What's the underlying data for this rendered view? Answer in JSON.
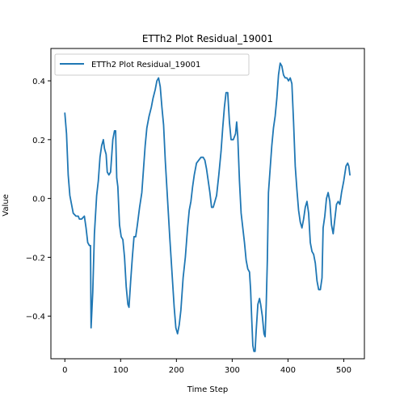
{
  "chart_data": {
    "type": "line",
    "title": "ETTh2 Plot Residual_19001",
    "xlabel": "Time Step",
    "ylabel": "Value",
    "xlim": [
      -25,
      537
    ],
    "ylim": [
      -0.545,
      0.51
    ],
    "xticks": [
      0,
      100,
      200,
      300,
      400,
      500
    ],
    "yticks": [
      -0.4,
      -0.2,
      0.0,
      0.2,
      0.4
    ],
    "ytick_labels": [
      "−0.4",
      "−0.2",
      "0.0",
      "0.2",
      "0.4"
    ],
    "grid": false,
    "legend_position": "top-left",
    "series": [
      {
        "name": "ETTh2 Plot Residual_19001",
        "color": "#1f77b4",
        "points": [
          [
            0,
            0.29
          ],
          [
            3,
            0.22
          ],
          [
            6,
            0.08
          ],
          [
            9,
            0.01
          ],
          [
            12,
            -0.02
          ],
          [
            15,
            -0.05
          ],
          [
            20,
            -0.06
          ],
          [
            24,
            -0.06
          ],
          [
            26,
            -0.07
          ],
          [
            30,
            -0.07
          ],
          [
            35,
            -0.06
          ],
          [
            38,
            -0.1
          ],
          [
            41,
            -0.15
          ],
          [
            44,
            -0.16
          ],
          [
            46,
            -0.16
          ],
          [
            47,
            -0.44
          ],
          [
            50,
            -0.32
          ],
          [
            53,
            -0.12
          ],
          [
            57,
            0.01
          ],
          [
            60,
            0.06
          ],
          [
            63,
            0.14
          ],
          [
            66,
            0.18
          ],
          [
            69,
            0.2
          ],
          [
            71,
            0.17
          ],
          [
            74,
            0.15
          ],
          [
            76,
            0.09
          ],
          [
            79,
            0.08
          ],
          [
            82,
            0.09
          ],
          [
            86,
            0.2
          ],
          [
            89,
            0.23
          ],
          [
            91,
            0.23
          ],
          [
            93,
            0.07
          ],
          [
            95,
            0.04
          ],
          [
            98,
            -0.09
          ],
          [
            101,
            -0.13
          ],
          [
            104,
            -0.14
          ],
          [
            107,
            -0.2
          ],
          [
            110,
            -0.3
          ],
          [
            113,
            -0.36
          ],
          [
            115,
            -0.37
          ],
          [
            118,
            -0.28
          ],
          [
            121,
            -0.2
          ],
          [
            124,
            -0.13
          ],
          [
            127,
            -0.13
          ],
          [
            130,
            -0.09
          ],
          [
            134,
            -0.03
          ],
          [
            138,
            0.02
          ],
          [
            141,
            0.1
          ],
          [
            144,
            0.18
          ],
          [
            147,
            0.24
          ],
          [
            151,
            0.28
          ],
          [
            155,
            0.31
          ],
          [
            158,
            0.34
          ],
          [
            162,
            0.37
          ],
          [
            165,
            0.4
          ],
          [
            168,
            0.41
          ],
          [
            171,
            0.38
          ],
          [
            174,
            0.31
          ],
          [
            177,
            0.25
          ],
          [
            180,
            0.13
          ],
          [
            184,
            0.0
          ],
          [
            188,
            -0.13
          ],
          [
            192,
            -0.25
          ],
          [
            196,
            -0.37
          ],
          [
            199,
            -0.44
          ],
          [
            202,
            -0.46
          ],
          [
            205,
            -0.43
          ],
          [
            208,
            -0.38
          ],
          [
            212,
            -0.27
          ],
          [
            216,
            -0.2
          ],
          [
            220,
            -0.1
          ],
          [
            223,
            -0.04
          ],
          [
            226,
            -0.01
          ],
          [
            229,
            0.04
          ],
          [
            232,
            0.08
          ],
          [
            236,
            0.12
          ],
          [
            240,
            0.13
          ],
          [
            244,
            0.14
          ],
          [
            248,
            0.14
          ],
          [
            251,
            0.13
          ],
          [
            254,
            0.1
          ],
          [
            257,
            0.06
          ],
          [
            260,
            0.02
          ],
          [
            263,
            -0.03
          ],
          [
            266,
            -0.03
          ],
          [
            269,
            -0.01
          ],
          [
            272,
            0.01
          ],
          [
            276,
            0.08
          ],
          [
            280,
            0.16
          ],
          [
            283,
            0.24
          ],
          [
            286,
            0.31
          ],
          [
            289,
            0.36
          ],
          [
            292,
            0.36
          ],
          [
            295,
            0.26
          ],
          [
            298,
            0.2
          ],
          [
            302,
            0.2
          ],
          [
            306,
            0.22
          ],
          [
            308,
            0.26
          ],
          [
            310,
            0.21
          ],
          [
            313,
            0.06
          ],
          [
            316,
            -0.05
          ],
          [
            319,
            -0.1
          ],
          [
            322,
            -0.15
          ],
          [
            325,
            -0.21
          ],
          [
            328,
            -0.24
          ],
          [
            331,
            -0.25
          ],
          [
            333,
            -0.31
          ],
          [
            335,
            -0.41
          ],
          [
            337,
            -0.5
          ],
          [
            339,
            -0.52
          ],
          [
            341,
            -0.52
          ],
          [
            343,
            -0.45
          ],
          [
            346,
            -0.36
          ],
          [
            349,
            -0.34
          ],
          [
            351,
            -0.36
          ],
          [
            354,
            -0.4
          ],
          [
            357,
            -0.46
          ],
          [
            359,
            -0.47
          ],
          [
            361,
            -0.36
          ],
          [
            363,
            -0.21
          ],
          [
            365,
            0.02
          ],
          [
            368,
            0.1
          ],
          [
            371,
            0.18
          ],
          [
            374,
            0.24
          ],
          [
            377,
            0.28
          ],
          [
            380,
            0.34
          ],
          [
            383,
            0.42
          ],
          [
            386,
            0.46
          ],
          [
            389,
            0.45
          ],
          [
            392,
            0.42
          ],
          [
            395,
            0.41
          ],
          [
            398,
            0.41
          ],
          [
            401,
            0.4
          ],
          [
            404,
            0.41
          ],
          [
            407,
            0.39
          ],
          [
            410,
            0.26
          ],
          [
            413,
            0.11
          ],
          [
            416,
            0.03
          ],
          [
            419,
            -0.04
          ],
          [
            422,
            -0.08
          ],
          [
            425,
            -0.1
          ],
          [
            428,
            -0.07
          ],
          [
            431,
            -0.03
          ],
          [
            434,
            -0.01
          ],
          [
            437,
            -0.05
          ],
          [
            440,
            -0.15
          ],
          [
            443,
            -0.18
          ],
          [
            446,
            -0.19
          ],
          [
            449,
            -0.22
          ],
          [
            452,
            -0.28
          ],
          [
            455,
            -0.31
          ],
          [
            458,
            -0.31
          ],
          [
            461,
            -0.27
          ],
          [
            463,
            -0.1
          ],
          [
            466,
            -0.06
          ],
          [
            469,
            0.0
          ],
          [
            472,
            0.02
          ],
          [
            475,
            -0.01
          ],
          [
            478,
            -0.09
          ],
          [
            481,
            -0.12
          ],
          [
            484,
            -0.07
          ],
          [
            487,
            -0.02
          ],
          [
            490,
            -0.01
          ],
          [
            493,
            -0.02
          ],
          [
            496,
            0.02
          ],
          [
            500,
            0.06
          ],
          [
            504,
            0.11
          ],
          [
            507,
            0.12
          ],
          [
            509,
            0.11
          ],
          [
            511,
            0.08
          ]
        ]
      }
    ]
  }
}
